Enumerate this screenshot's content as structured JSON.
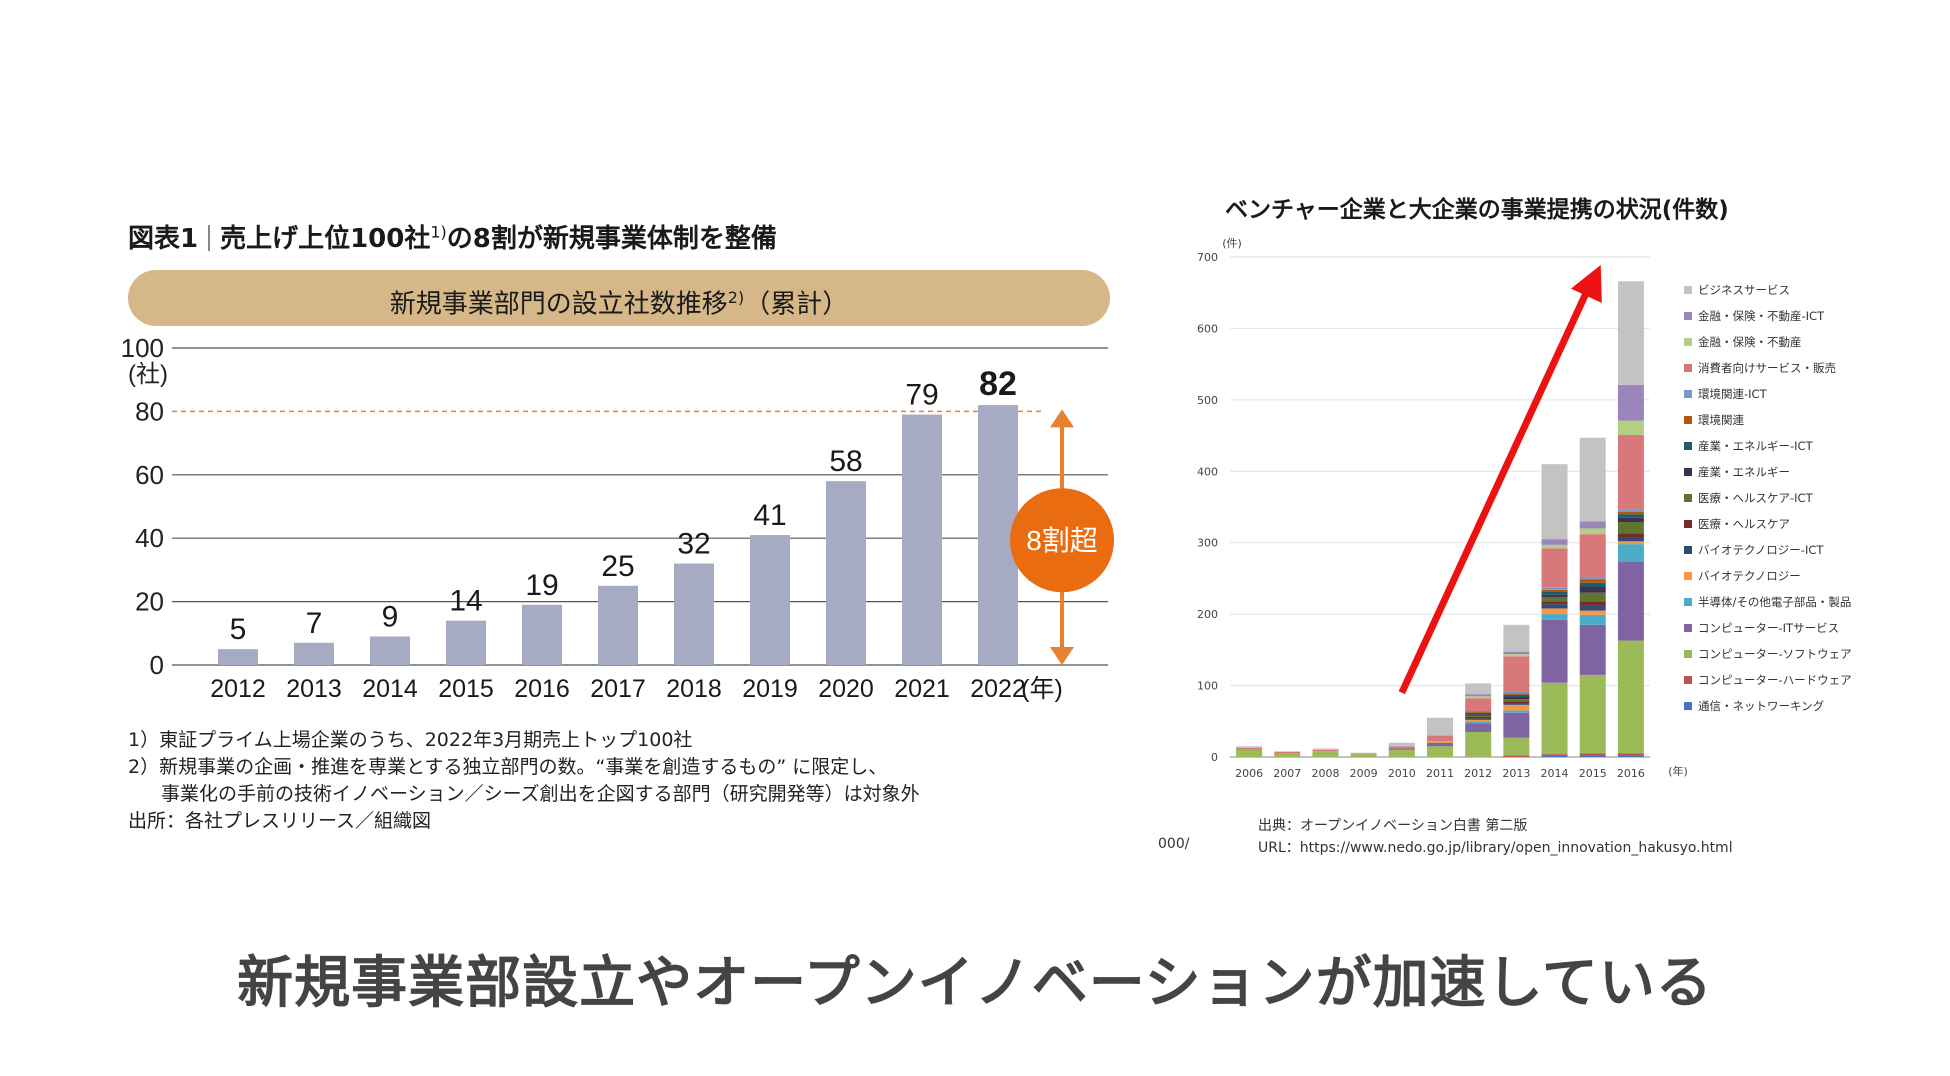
{
  "left": {
    "title_prefix": "図表1",
    "title_main": "売上げ上位100社",
    "title_sup": "1)",
    "title_rest": "の8割が新規事業体制を整備",
    "pill_main": "新規事業部門の設立社数推移",
    "pill_sup": "2)",
    "pill_rest": "（累計）",
    "notes": [
      "1）東証プライム上場企業のうち、2022年3月期売上トップ100社",
      "2）新規事業の企画・推進を専業とする独立部門の数。“事業を創造するもの” に限定し、",
      "事業化の手前の技術イノベーション／シーズ創出を企図する部門（研究開発等）は対象外",
      "出所：各社プレスリリース／組織図"
    ]
  },
  "chart_data": [
    {
      "type": "bar",
      "title": "新規事業部門の設立社数推移（累計）",
      "categories": [
        "2012",
        "2013",
        "2014",
        "2015",
        "2016",
        "2017",
        "2018",
        "2019",
        "2020",
        "2021",
        "2022"
      ],
      "values": [
        5,
        7,
        9,
        14,
        19,
        25,
        32,
        41,
        58,
        79,
        82
      ],
      "ylim": [
        0,
        100
      ],
      "yticks": [
        0,
        20,
        40,
        60,
        80,
        100
      ],
      "ylabel": "(社)",
      "xlabel": "(年)",
      "reference_line": 80,
      "annotation": "8割超",
      "colors": {
        "bar": "#a6aac3",
        "reference": "#e8822e",
        "annotation": "#ea6c10"
      }
    },
    {
      "type": "bar",
      "stacked": true,
      "title": "ベンチャー企業と大企業の事業提携の状況(件数)",
      "ylabel": "(件)",
      "xlabel": "(年)",
      "ylim": [
        0,
        700
      ],
      "yticks": [
        0,
        100,
        200,
        300,
        400,
        500,
        600,
        700
      ],
      "categories": [
        "2006",
        "2007",
        "2008",
        "2009",
        "2010",
        "2011",
        "2012",
        "2013",
        "2014",
        "2015",
        "2016"
      ],
      "series": [
        {
          "name": "通信・ネットワーキング",
          "color": "#4472c4",
          "values": [
            0,
            0,
            0,
            0,
            0,
            0,
            0,
            0,
            2,
            2,
            2
          ]
        },
        {
          "name": "コンピューター-ハードウェア",
          "color": "#c0504d",
          "values": [
            0,
            0,
            0,
            0,
            0,
            0,
            0,
            2,
            2,
            3,
            3
          ]
        },
        {
          "name": "コンピューター-ソフトウェア",
          "color": "#9bbb59",
          "values": [
            10,
            5,
            8,
            4,
            10,
            15,
            35,
            25,
            100,
            110,
            158
          ]
        },
        {
          "name": "コンピューター-ITサービス",
          "color": "#8064a2",
          "values": [
            0,
            0,
            0,
            0,
            2,
            5,
            12,
            35,
            88,
            70,
            110
          ]
        },
        {
          "name": "半導体/その他電子部品・製品",
          "color": "#4bacc6",
          "values": [
            0,
            0,
            0,
            0,
            0,
            0,
            3,
            3,
            8,
            14,
            25
          ]
        },
        {
          "name": "バイオテクノロジー",
          "color": "#f79646",
          "values": [
            0,
            0,
            0,
            0,
            0,
            2,
            2,
            8,
            8,
            6,
            4
          ]
        },
        {
          "name": "バイオテクノロジー-ICT",
          "color": "#2c4d75",
          "values": [
            0,
            0,
            0,
            0,
            0,
            0,
            2,
            2,
            6,
            7,
            6
          ]
        },
        {
          "name": "医療・ヘルスケア",
          "color": "#772c2a",
          "values": [
            0,
            0,
            0,
            0,
            0,
            0,
            2,
            3,
            4,
            6,
            5
          ]
        },
        {
          "name": "医療・ヘルスケア-ICT",
          "color": "#5f7530",
          "values": [
            0,
            0,
            0,
            0,
            0,
            0,
            2,
            3,
            6,
            12,
            16
          ]
        },
        {
          "name": "産業・エネルギー",
          "color": "#403152",
          "values": [
            0,
            0,
            0,
            0,
            0,
            0,
            2,
            3,
            3,
            8,
            6
          ]
        },
        {
          "name": "産業・エネルギー-ICT",
          "color": "#215968",
          "values": [
            0,
            0,
            0,
            0,
            0,
            0,
            2,
            3,
            5,
            6,
            5
          ]
        },
        {
          "name": "環境関連",
          "color": "#b65708",
          "values": [
            0,
            0,
            0,
            0,
            0,
            0,
            2,
            2,
            2,
            5,
            3
          ]
        },
        {
          "name": "環境関連-ICT",
          "color": "#729aca",
          "values": [
            0,
            0,
            0,
            0,
            0,
            0,
            0,
            2,
            3,
            3,
            3
          ]
        },
        {
          "name": "消費者向けサービス・販売",
          "color": "#d9787a",
          "values": [
            3,
            2,
            2,
            1,
            3,
            8,
            18,
            50,
            55,
            60,
            105
          ]
        },
        {
          "name": "金融・保険・不動産",
          "color": "#b3cf82",
          "values": [
            0,
            0,
            0,
            0,
            0,
            0,
            3,
            3,
            5,
            8,
            20
          ]
        },
        {
          "name": "金融・保険・不動産-ICT",
          "color": "#9a85bd",
          "values": [
            0,
            0,
            0,
            0,
            0,
            0,
            3,
            3,
            8,
            10,
            50
          ]
        },
        {
          "name": "ビジネスサービス",
          "color": "#c3c3c3",
          "values": [
            2,
            1,
            2,
            1,
            5,
            25,
            15,
            38,
            105,
            117,
            145
          ]
        }
      ],
      "annotation": "upward red arrow",
      "arrow_color": "#ee1111"
    }
  ],
  "right": {
    "title": "ベンチャー企業と大企業の事業提携の状況(件数)",
    "source_line": "出典：オープンイノベーション白書 第二版",
    "url_line": "URL：https://www.nedo.go.jp/library/open_innovation_hakusyo.html",
    "crop_fragment": "000/"
  },
  "caption": "新規事業部設立やオープンイノベーションが加速している"
}
